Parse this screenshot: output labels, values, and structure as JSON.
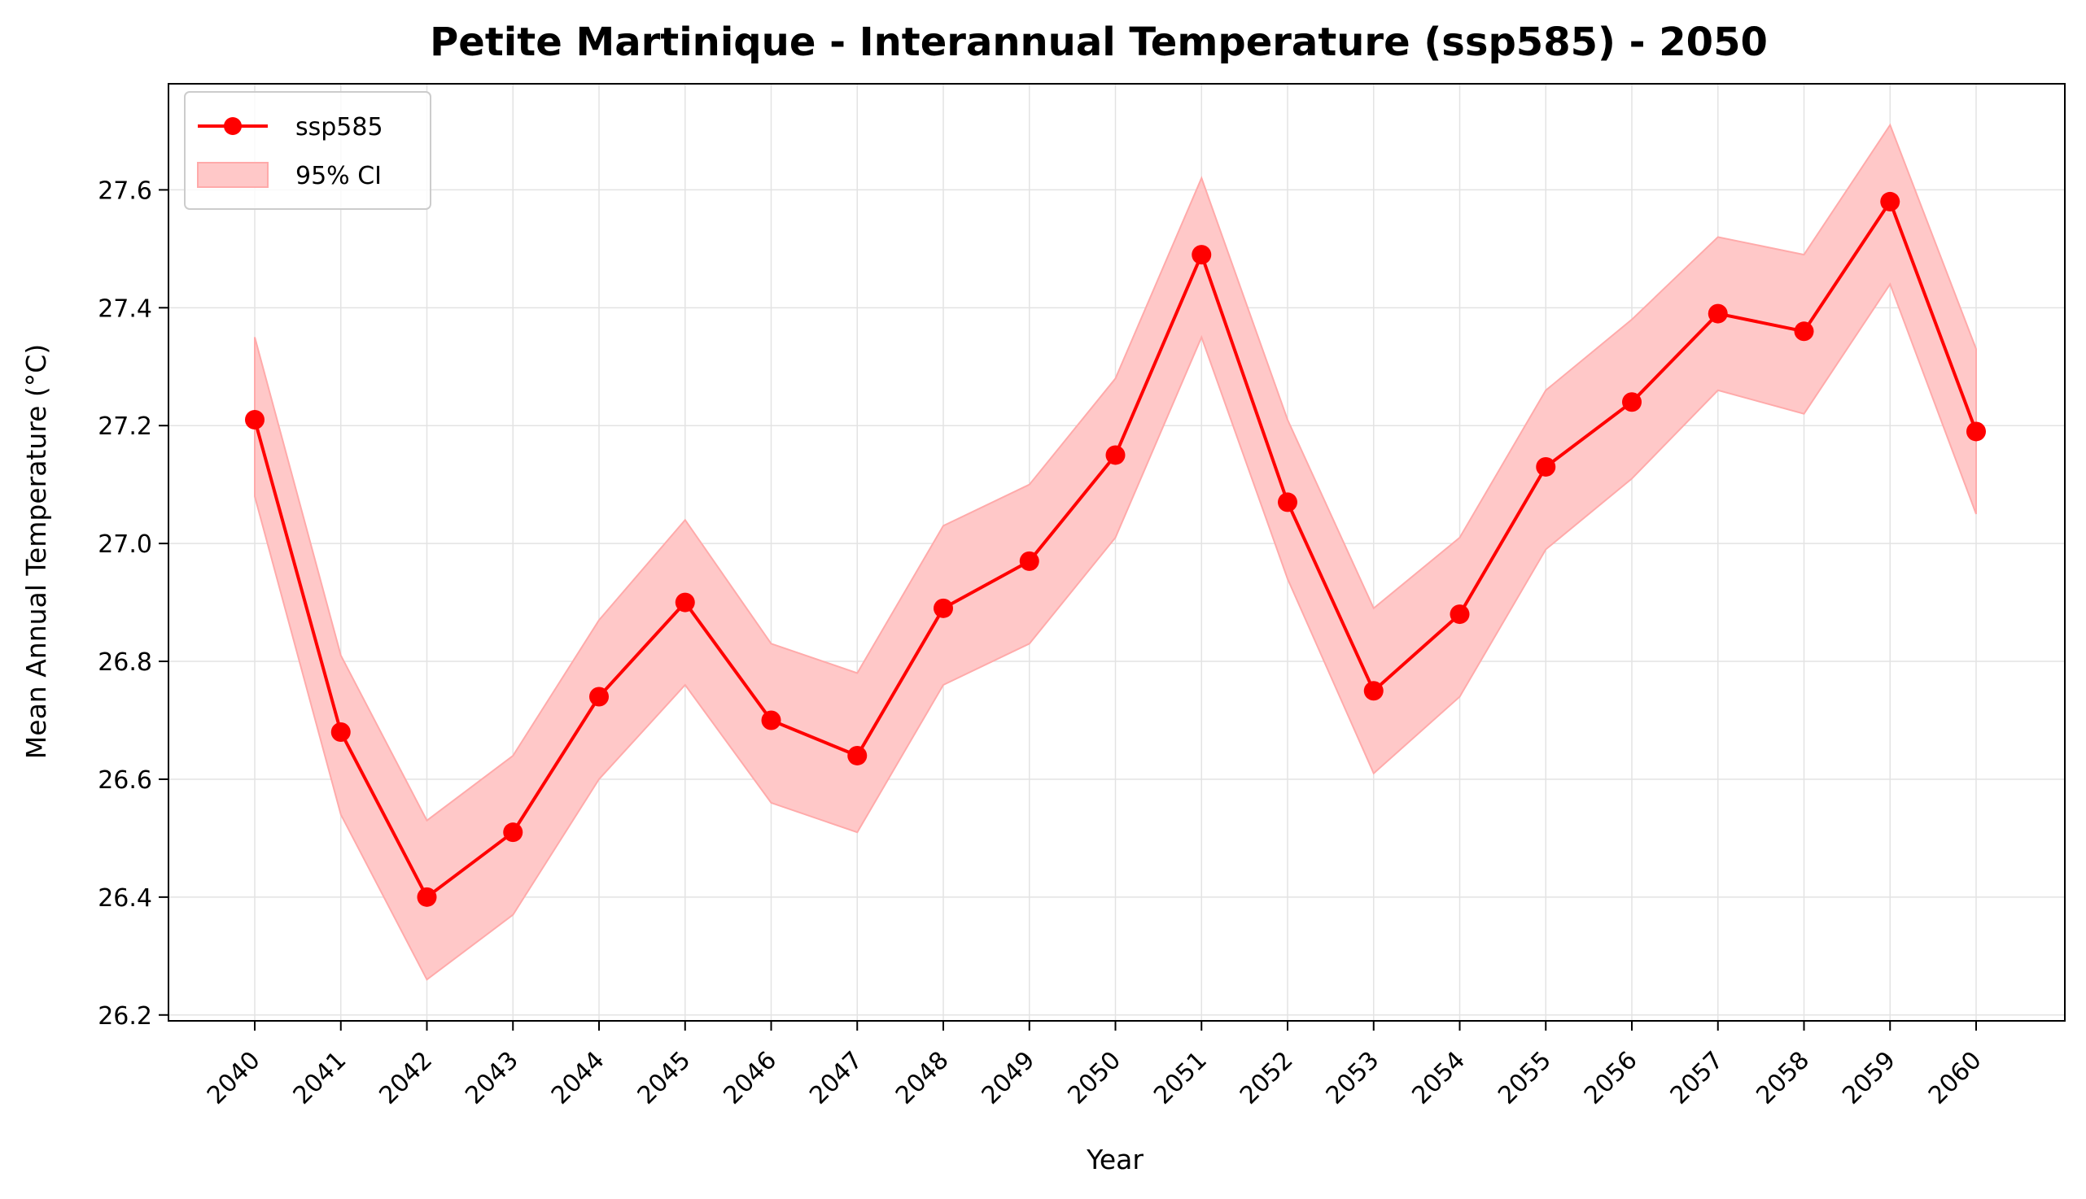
{
  "colors": {
    "line": "#ff0000",
    "band": "#ffc8c8",
    "band_edge": "#ffaaaa",
    "grid": "#e3e3e3"
  },
  "chart_data": {
    "type": "line",
    "title": "Petite Martinique - Interannual Temperature (ssp585) - 2050",
    "xlabel": "Year",
    "ylabel": "Mean Annual Temperature (°C)",
    "categories": [
      "2040",
      "2041",
      "2042",
      "2043",
      "2044",
      "2045",
      "2046",
      "2047",
      "2048",
      "2049",
      "2050",
      "2051",
      "2052",
      "2053",
      "2054",
      "2055",
      "2056",
      "2057",
      "2058",
      "2059",
      "2060"
    ],
    "yticks": [
      "26.2",
      "26.4",
      "26.6",
      "26.8",
      "27.0",
      "27.2",
      "27.4",
      "27.6"
    ],
    "ylim": [
      26.19,
      27.78
    ],
    "grid": true,
    "legend_position": "top-left",
    "series": [
      {
        "name": "ssp585",
        "values": [
          27.21,
          26.68,
          26.4,
          26.51,
          26.74,
          26.9,
          26.7,
          26.64,
          26.89,
          26.97,
          27.15,
          27.49,
          27.07,
          26.75,
          26.88,
          27.13,
          27.24,
          27.39,
          27.36,
          27.58,
          27.19
        ]
      }
    ],
    "ci": {
      "name": "95% CI",
      "lower": [
        27.08,
        26.54,
        26.26,
        26.37,
        26.6,
        26.76,
        26.56,
        26.51,
        26.76,
        26.83,
        27.01,
        27.35,
        26.94,
        26.61,
        26.74,
        26.99,
        27.11,
        27.26,
        27.22,
        27.44,
        27.05
      ],
      "upper": [
        27.35,
        26.81,
        26.53,
        26.64,
        26.87,
        27.04,
        26.83,
        26.78,
        27.03,
        27.1,
        27.28,
        27.62,
        27.21,
        26.89,
        27.01,
        27.26,
        27.38,
        27.52,
        27.49,
        27.71,
        27.33
      ]
    }
  }
}
